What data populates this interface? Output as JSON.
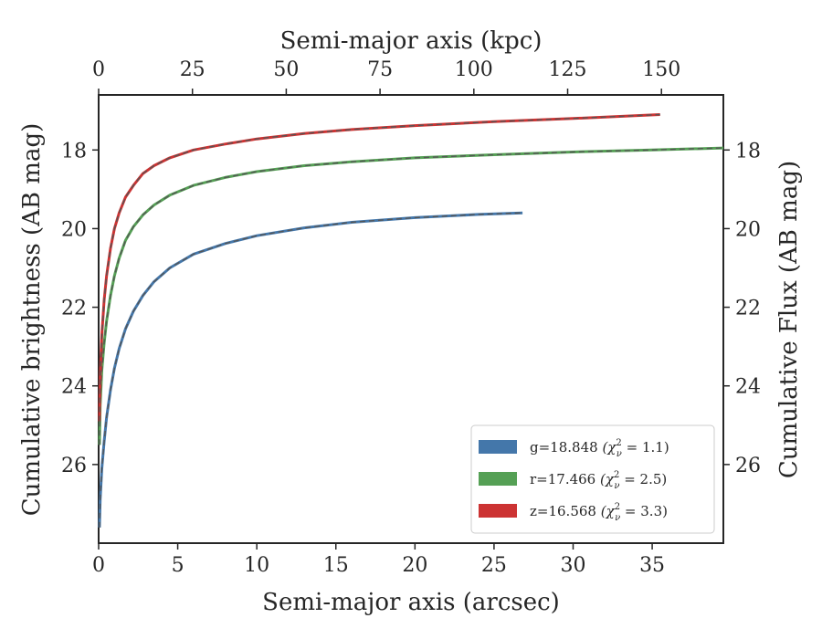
{
  "chart_data": {
    "type": "line",
    "xlabel": "Semi-major axis (arcsec)",
    "ylabel": "Cumulative brightness (AB mag)",
    "x2label": "Semi-major axis (kpc)",
    "y2label": "Cumulative Flux (AB mag)",
    "xlim": [
      0,
      39.5
    ],
    "ylim": [
      28.0,
      16.6
    ],
    "y_inverted": true,
    "xticks": [
      0,
      5,
      10,
      15,
      20,
      25,
      30,
      35
    ],
    "yticks": [
      18,
      20,
      22,
      24,
      26
    ],
    "x2lim": [
      0,
      166.5
    ],
    "x2ticks": [
      0,
      25,
      50,
      75,
      100,
      125,
      150
    ],
    "legend_position": "lower right",
    "grid": false,
    "series": [
      {
        "name": "g=18.848 (χ²_ν = 1.1)",
        "legend_label": "g=18.848 ",
        "chi_label": "(χ",
        "chi_sup": "2",
        "chi_sub": "ν",
        "chi_eq": " = 1.1)",
        "color": "#4477aa",
        "x": [
          0.05,
          0.1,
          0.2,
          0.35,
          0.5,
          0.75,
          1.0,
          1.3,
          1.7,
          2.2,
          2.8,
          3.5,
          4.5,
          6.0,
          8.0,
          10.0,
          13.0,
          16.0,
          20.0,
          24.0,
          26.8
        ],
        "y": [
          27.6,
          26.9,
          26.1,
          25.4,
          24.8,
          24.1,
          23.55,
          23.05,
          22.55,
          22.1,
          21.7,
          21.35,
          21.0,
          20.65,
          20.38,
          20.18,
          19.98,
          19.84,
          19.72,
          19.64,
          19.6
        ]
      },
      {
        "name": "r=17.466 (χ²_ν = 2.5)",
        "legend_label": "r=17.466 ",
        "chi_label": "(χ",
        "chi_sup": "2",
        "chi_sub": "ν",
        "chi_eq": " = 2.5)",
        "color": "#55a055",
        "x": [
          0.05,
          0.1,
          0.2,
          0.35,
          0.5,
          0.75,
          1.0,
          1.3,
          1.7,
          2.2,
          2.8,
          3.5,
          4.5,
          6.0,
          8.0,
          10.0,
          13.0,
          16.0,
          20.0,
          25.0,
          30.0,
          35.0,
          39.5
        ],
        "y": [
          25.5,
          24.5,
          23.6,
          22.9,
          22.35,
          21.7,
          21.2,
          20.75,
          20.3,
          19.95,
          19.65,
          19.4,
          19.15,
          18.9,
          18.7,
          18.55,
          18.4,
          18.3,
          18.2,
          18.12,
          18.05,
          18.0,
          17.95
        ]
      },
      {
        "name": "z=16.568 (χ²_ν = 3.3)",
        "legend_label": "z=16.568 ",
        "chi_label": "(χ",
        "chi_sup": "2",
        "chi_sub": "ν",
        "chi_eq": " = 3.3)",
        "color": "#cc3333",
        "x": [
          0.05,
          0.1,
          0.2,
          0.35,
          0.5,
          0.75,
          1.0,
          1.3,
          1.7,
          2.2,
          2.8,
          3.5,
          4.5,
          6.0,
          8.0,
          10.0,
          13.0,
          16.0,
          20.0,
          25.0,
          30.0,
          35.5
        ],
        "y": [
          24.9,
          23.7,
          22.7,
          21.8,
          21.2,
          20.5,
          20.0,
          19.6,
          19.2,
          18.9,
          18.6,
          18.4,
          18.2,
          18.0,
          17.85,
          17.72,
          17.58,
          17.48,
          17.38,
          17.28,
          17.2,
          17.1
        ]
      }
    ]
  }
}
